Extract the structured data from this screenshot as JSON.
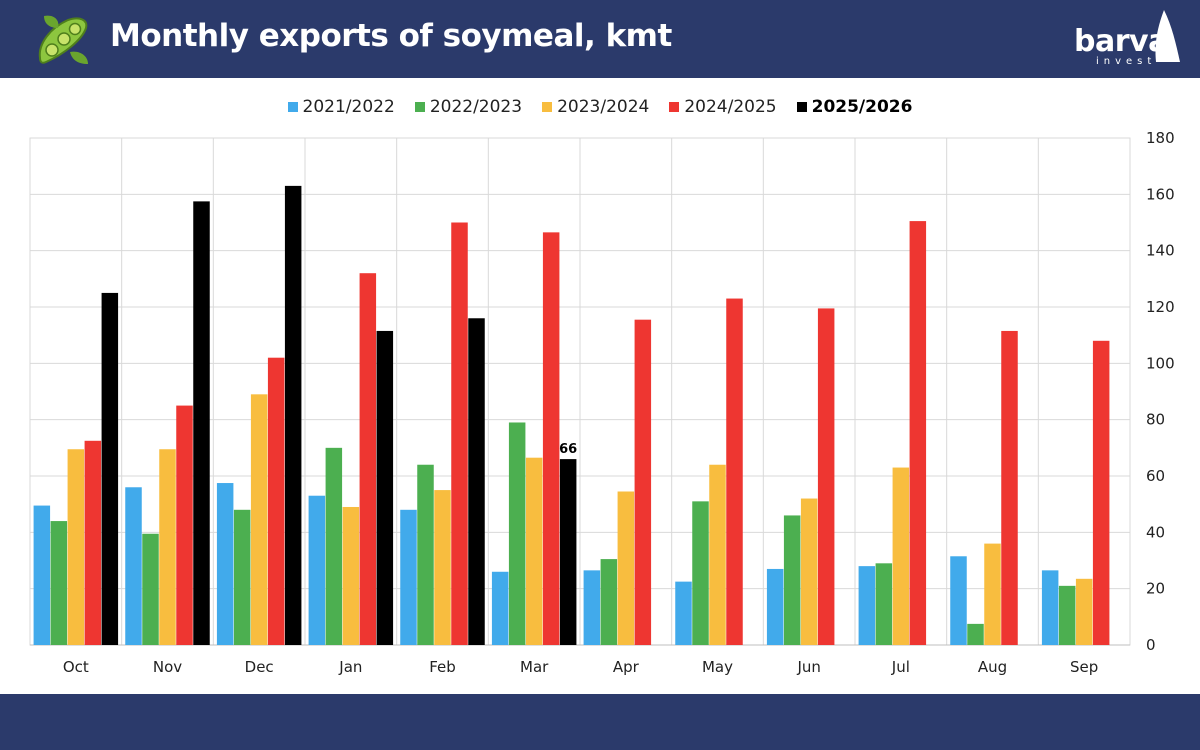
{
  "header": {
    "title": "Monthly exports of soymeal, kmt",
    "brand_name": "barva",
    "brand_sub": "invest"
  },
  "colors": {
    "header_bg": "#2b3a6b",
    "series": [
      "#41aaeb",
      "#4caf50",
      "#f8bd3f",
      "#ee3631",
      "#000000"
    ]
  },
  "chart_data": {
    "type": "bar",
    "categories": [
      "Oct",
      "Nov",
      "Dec",
      "Jan",
      "Feb",
      "Mar",
      "Apr",
      "May",
      "Jun",
      "Jul",
      "Aug",
      "Sep"
    ],
    "series": [
      {
        "name": "2021/2022",
        "color": "#41aaeb",
        "values": [
          49.5,
          56,
          57.5,
          53,
          48,
          26,
          26.5,
          22.5,
          27,
          28,
          31.5,
          26.5
        ]
      },
      {
        "name": "2022/2023",
        "color": "#4caf50",
        "values": [
          44,
          39.5,
          48,
          70,
          64,
          79,
          30.5,
          51,
          46,
          29,
          7.5,
          21
        ]
      },
      {
        "name": "2023/2024",
        "color": "#f8bd3f",
        "values": [
          69.5,
          69.5,
          89,
          49,
          55,
          66.5,
          54.5,
          64,
          52,
          63,
          36,
          23.5
        ]
      },
      {
        "name": "2024/2025",
        "color": "#ee3631",
        "values": [
          72.5,
          85,
          102,
          132,
          150,
          146.5,
          115.5,
          123,
          119.5,
          150.5,
          111.5,
          108
        ]
      },
      {
        "name": "2025/2026",
        "color": "#000000",
        "bold": true,
        "values": [
          125,
          157.5,
          163,
          111.5,
          116,
          66,
          null,
          null,
          null,
          null,
          null,
          null
        ]
      }
    ],
    "ylim": [
      0,
      180
    ],
    "yticks": [
      "0",
      "20",
      "40",
      "60",
      "80",
      "100",
      "120",
      "140",
      "160",
      "180"
    ],
    "y_axis_side": "right",
    "grid": true,
    "legend": "top-center",
    "annotations": [
      {
        "category": "Mar",
        "series": "2025/2026",
        "text": "66"
      }
    ]
  }
}
